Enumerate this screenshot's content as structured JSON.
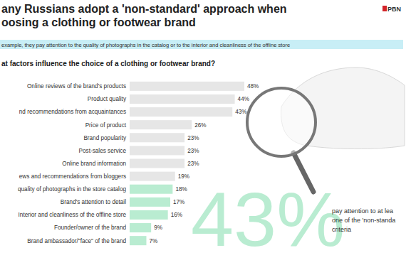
{
  "chart_data": {
    "type": "bar",
    "orientation": "horizontal",
    "title": [
      "any Russians adopt a 'non-standard' approach when",
      "oosing a clothing or footwear brand"
    ],
    "subtitle": "example, they pay attention to the quality of photographs in the catalog or to the interior and cleanliness of the offline store",
    "question": "at factors influence the choice of a clothing or footwear brand?",
    "source": "PBN",
    "categories": [
      "Online reviews of the brand's products",
      "Product quality",
      "nd recommendations from acquaintances",
      "Price of product",
      "Brand popularity",
      "Post-sales service",
      "Online brand information",
      "ews and recommendations from bloggers",
      "quality of photographs in the store catalog",
      "Brand's attention to detail",
      "Interior and cleanliness of the offline store",
      "Founder/owner of the brand",
      "Brand ambassador/\"face\" of the brand"
    ],
    "values": [
      48,
      44,
      43,
      26,
      23,
      23,
      23,
      19,
      18,
      17,
      16,
      9,
      7
    ],
    "value_labels": [
      "48%",
      "44%",
      "43%",
      "26%",
      "23%",
      "23%",
      "23%",
      "19%",
      "18%",
      "17%",
      "16%",
      "9%",
      "7%"
    ],
    "colors": [
      "#e6e6e6",
      "#e6e6e6",
      "#e6e6e6",
      "#e6e6e6",
      "#e6e6e6",
      "#e6e6e6",
      "#e6e6e6",
      "#e6e6e6",
      "#b9ecd1",
      "#b9ecd1",
      "#b9ecd1",
      "#b9ecd1",
      "#b9ecd1"
    ],
    "data_labels": true,
    "tick_labels": false,
    "grid": false,
    "annotations": [
      "43%",
      "pay attention to at lea",
      "one of the 'non-standa",
      "criteria"
    ]
  }
}
